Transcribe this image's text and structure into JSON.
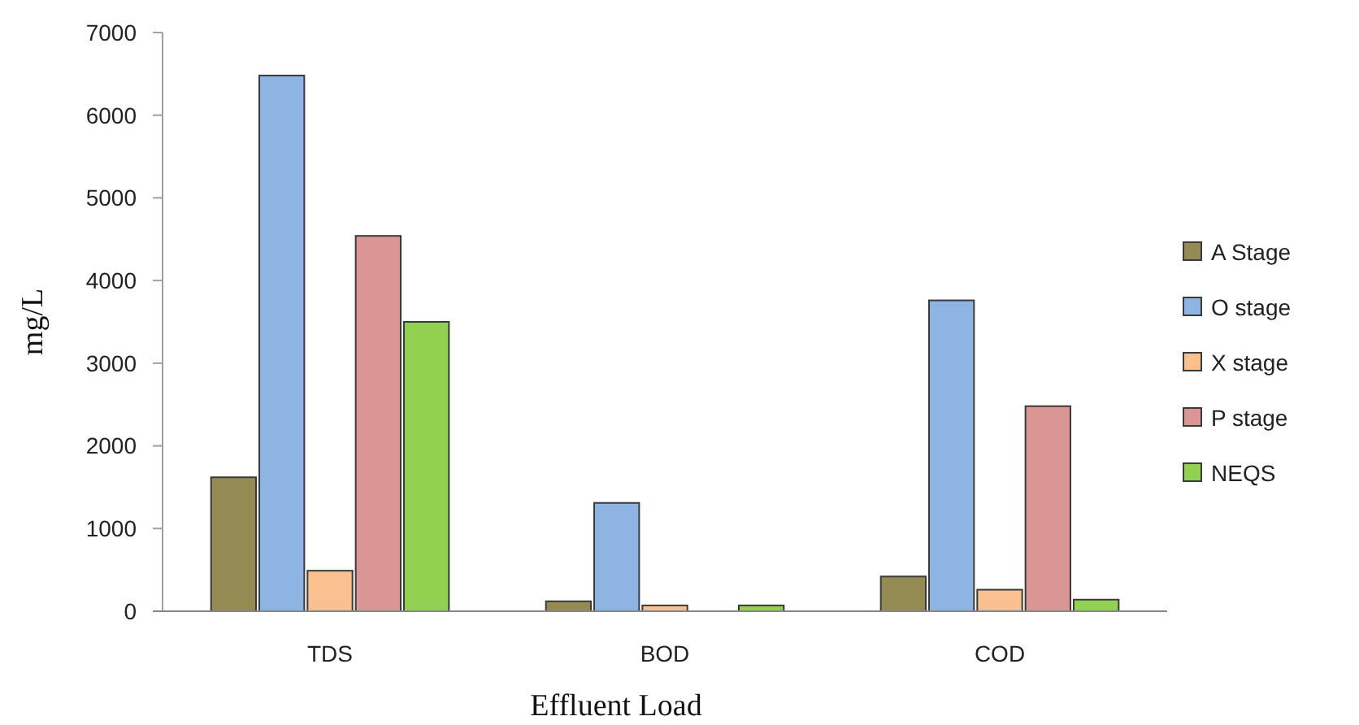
{
  "chart_data": {
    "type": "bar",
    "xlabel": "Effluent Load",
    "ylabel": "mg/L",
    "categories": [
      "TDS",
      "BOD",
      "COD"
    ],
    "series": [
      {
        "name": "A Stage",
        "color": "#948a54",
        "values": [
          1620,
          120,
          420
        ]
      },
      {
        "name": "O stage",
        "color": "#8eb4e3",
        "values": [
          6480,
          1310,
          3760
        ]
      },
      {
        "name": "X stage",
        "color": "#fac090",
        "values": [
          490,
          70,
          260
        ]
      },
      {
        "name": "P stage",
        "color": "#d99694",
        "values": [
          4540,
          null,
          2480
        ]
      },
      {
        "name": "NEQS",
        "color": "#92d050",
        "values": [
          3500,
          70,
          140
        ]
      }
    ],
    "ylim": [
      0,
      7000
    ],
    "yticks": [
      0,
      1000,
      2000,
      3000,
      4000,
      5000,
      6000,
      7000
    ],
    "grid": false,
    "legend": "right"
  }
}
